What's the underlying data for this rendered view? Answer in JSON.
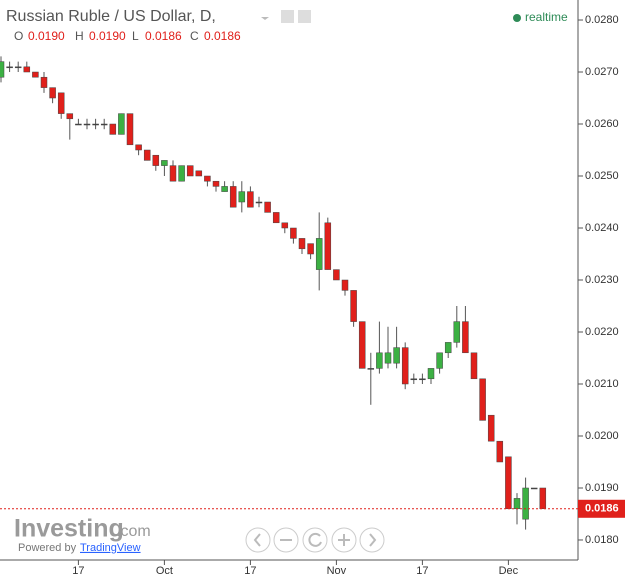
{
  "header": {
    "title": "Russian Ruble / US Dollar, D,",
    "o_label": "O",
    "o": "0.0190",
    "h_label": "H",
    "h": "0.0190",
    "l_label": "L",
    "l": "0.0186",
    "c_label": "C",
    "c": "0.0186",
    "status": "realtime"
  },
  "branding": {
    "logo": "Investing",
    "logo_suffix": ".com",
    "powered_by": "Powered by",
    "provider": "TradingView"
  },
  "chart_data": {
    "type": "candlestick",
    "categories": [
      null,
      null,
      null,
      null,
      null,
      null,
      null,
      null,
      null,
      "17",
      null,
      null,
      null,
      null,
      null,
      null,
      null,
      null,
      null,
      "Oct",
      null,
      null,
      null,
      null,
      null,
      null,
      null,
      null,
      null,
      "17",
      null,
      null,
      null,
      null,
      null,
      null,
      null,
      null,
      null,
      "Nov",
      null,
      null,
      null,
      null,
      null,
      null,
      null,
      null,
      null,
      "17",
      null,
      null,
      null,
      null,
      null,
      null,
      null,
      null,
      null,
      "Dec",
      null,
      null,
      null,
      null
    ],
    "open": [
      0.0269,
      0.0271,
      0.0271,
      0.0271,
      0.027,
      0.0269,
      0.0267,
      0.0266,
      0.0262,
      0.026,
      0.026,
      0.026,
      0.026,
      0.026,
      0.0258,
      0.0262,
      0.0256,
      0.0255,
      0.0254,
      0.0252,
      0.0252,
      0.0249,
      0.0252,
      0.0251,
      0.025,
      0.0249,
      0.0247,
      0.0248,
      0.0245,
      0.0247,
      0.0245,
      0.0245,
      0.0243,
      0.0241,
      0.024,
      0.0238,
      0.0237,
      0.0232,
      0.0241,
      0.0232,
      0.023,
      0.0228,
      0.0222,
      0.0213,
      0.0213,
      0.0214,
      0.0214,
      0.0217,
      0.0211,
      0.0211,
      0.0211,
      0.0213,
      0.0216,
      0.0218,
      0.0222,
      0.0216,
      0.0211,
      0.0204,
      0.0199,
      0.0196,
      0.0186,
      0.0184,
      0.019,
      0.019
    ],
    "high": [
      0.0273,
      0.0272,
      0.0272,
      0.0272,
      0.027,
      0.027,
      0.0267,
      0.0266,
      0.0262,
      0.0261,
      0.0261,
      0.0261,
      0.0261,
      0.026,
      0.0262,
      0.0262,
      0.0256,
      0.0255,
      0.0254,
      0.0253,
      0.0253,
      0.0252,
      0.0252,
      0.0251,
      0.025,
      0.0249,
      0.0249,
      0.0249,
      0.0249,
      0.0248,
      0.0246,
      0.0245,
      0.0243,
      0.0241,
      0.024,
      0.0238,
      0.0237,
      0.0243,
      0.0242,
      0.0232,
      0.023,
      0.0228,
      0.0222,
      0.0216,
      0.0222,
      0.0221,
      0.0221,
      0.0218,
      0.0212,
      0.0212,
      0.0213,
      0.0216,
      0.0218,
      0.0225,
      0.0225,
      0.0216,
      0.0211,
      0.0204,
      0.0199,
      0.0196,
      0.0189,
      0.0192,
      0.019,
      0.019
    ],
    "low": [
      0.0268,
      0.027,
      0.027,
      0.027,
      0.0269,
      0.0266,
      0.0264,
      0.0261,
      0.0257,
      0.026,
      0.0259,
      0.0259,
      0.0259,
      0.0258,
      0.0258,
      0.0256,
      0.0254,
      0.0253,
      0.0251,
      0.025,
      0.0249,
      0.0249,
      0.025,
      0.025,
      0.0248,
      0.0247,
      0.0247,
      0.0244,
      0.0243,
      0.0244,
      0.0244,
      0.0243,
      0.0241,
      0.0239,
      0.0237,
      0.0235,
      0.0234,
      0.0228,
      0.0232,
      0.023,
      0.0227,
      0.0221,
      0.0213,
      0.0206,
      0.0212,
      0.0213,
      0.0213,
      0.0209,
      0.021,
      0.021,
      0.021,
      0.0212,
      0.0215,
      0.0217,
      0.0216,
      0.0211,
      0.0203,
      0.0199,
      0.0195,
      0.0186,
      0.0183,
      0.0182,
      0.019,
      0.0186
    ],
    "close": [
      0.0272,
      0.0271,
      0.0271,
      0.027,
      0.0269,
      0.0267,
      0.0265,
      0.0262,
      0.0261,
      0.026,
      0.026,
      0.026,
      0.026,
      0.0258,
      0.0262,
      0.0256,
      0.0255,
      0.0253,
      0.0252,
      0.0253,
      0.0249,
      0.0252,
      0.025,
      0.025,
      0.0249,
      0.0248,
      0.0248,
      0.0244,
      0.0247,
      0.0244,
      0.0245,
      0.0243,
      0.0241,
      0.024,
      0.0238,
      0.0236,
      0.0235,
      0.0238,
      0.0232,
      0.023,
      0.0228,
      0.0222,
      0.0213,
      0.0213,
      0.0216,
      0.0216,
      0.0217,
      0.021,
      0.0211,
      0.0211,
      0.0213,
      0.0216,
      0.0218,
      0.0222,
      0.0216,
      0.0211,
      0.0203,
      0.0199,
      0.0195,
      0.0186,
      0.0188,
      0.019,
      0.019,
      0.0186
    ],
    "up_color": "#3cb043",
    "down_color": "#e0201b",
    "doji_color": "#444444",
    "ylim": [
      0.017615,
      0.028385
    ],
    "yticks": [
      {
        "value": 0.018,
        "label": "0.0180"
      },
      {
        "value": 0.019,
        "label": "0.0190"
      },
      {
        "value": 0.02,
        "label": "0.0200"
      },
      {
        "value": 0.021,
        "label": "0.0210"
      },
      {
        "value": 0.022,
        "label": "0.0220"
      },
      {
        "value": 0.023,
        "label": "0.0230"
      },
      {
        "value": 0.024,
        "label": "0.0240"
      },
      {
        "value": 0.025,
        "label": "0.0250"
      },
      {
        "value": 0.026,
        "label": "0.0260"
      },
      {
        "value": 0.027,
        "label": "0.0270"
      },
      {
        "value": 0.028,
        "label": "0.0280"
      }
    ],
    "last_price": {
      "value": 0.0186,
      "label": "0.0186"
    },
    "grid": false
  }
}
